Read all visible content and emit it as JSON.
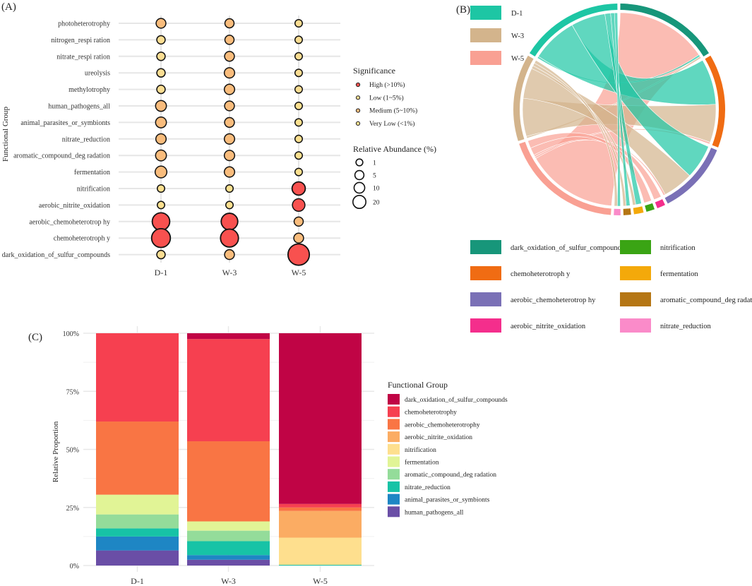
{
  "panels": {
    "a_label": "(A)",
    "b_label": "(B)",
    "c_label": "(C)"
  },
  "chart_data": [
    {
      "type": "scatter",
      "title": "(A)",
      "xlabel": "",
      "ylabel": "Functional Group",
      "groups": [
        "D-1",
        "W-3",
        "W-5"
      ],
      "categories": [
        "photoheterotrophy",
        "nitrogen_respi ration",
        "nitrate_respi ration",
        "ureolysis",
        "methylotrophy",
        "human_pathogens_all",
        "animal_parasites_or_symbionts",
        "nitrate_reduction",
        "aromatic_compound_deg radation",
        "fermentation",
        "nitrification",
        "aerobic_nitrite_oxidation",
        "aerobic_chemoheterotrop hy",
        "chemoheterotroph y",
        "dark_oxidation_of_sulfur_compounds"
      ],
      "abundance": [
        [
          2,
          1.5,
          0.5
        ],
        [
          1,
          1.5,
          0.5
        ],
        [
          1,
          2,
          0.5
        ],
        [
          1,
          2.5,
          0.5
        ],
        [
          1,
          2.5,
          0.5
        ],
        [
          3,
          2,
          0.5
        ],
        [
          3,
          2,
          0.5
        ],
        [
          2.5,
          2.5,
          0.5
        ],
        [
          3,
          2.5,
          0.5
        ],
        [
          4,
          2.5,
          0.5
        ],
        [
          0.5,
          0.5,
          6
        ],
        [
          0.5,
          0.5,
          5
        ],
        [
          14,
          12,
          1.5
        ],
        [
          17,
          15,
          2
        ],
        [
          1,
          2,
          24
        ]
      ],
      "significance": [
        [
          "Medium",
          "Medium",
          "Low"
        ],
        [
          "Low",
          "Medium",
          "Low"
        ],
        [
          "Low",
          "Medium",
          "Low"
        ],
        [
          "Low",
          "Medium",
          "Low"
        ],
        [
          "Low",
          "Medium",
          "Low"
        ],
        [
          "Medium",
          "Medium",
          "Very Low"
        ],
        [
          "Medium",
          "Medium",
          "Very Low"
        ],
        [
          "Medium",
          "Medium",
          "Very Low"
        ],
        [
          "Medium",
          "Medium",
          "Very Low"
        ],
        [
          "Medium",
          "Medium",
          "Very Low"
        ],
        [
          "Very Low",
          "Very Low",
          "High"
        ],
        [
          "Very Low",
          "Very Low",
          "High"
        ],
        [
          "High",
          "High",
          "Medium"
        ],
        [
          "High",
          "High",
          "Medium"
        ],
        [
          "Low",
          "Medium",
          "High"
        ]
      ],
      "significance_legend": {
        "title": "Significance",
        "items": [
          "High (>10%)",
          "Low (1~5%)",
          "Medium (5~10%)",
          "Very Low (<1%)"
        ]
      },
      "size_legend": {
        "title": "Relative Abundance (%)",
        "values": [
          1,
          5,
          10,
          20
        ]
      },
      "colors": {
        "High": "#f8514f",
        "Medium": "#f9bc7c",
        "Low": "#fbdd92",
        "Very Low": "#fce08f"
      }
    },
    {
      "type": "chord",
      "title": "(B)",
      "sources": [
        {
          "name": "D-1",
          "color": "#1dc6a4"
        },
        {
          "name": "W-3",
          "color": "#d3b48c"
        },
        {
          "name": "W-5",
          "color": "#f9a093"
        }
      ],
      "targets": [
        {
          "name": "dark_oxidation_of_sulfur_compounds",
          "color": "#17967a"
        },
        {
          "name": "chemoheterotroph y",
          "color": "#f06c13"
        },
        {
          "name": "aerobic_chemoheterotrop hy",
          "color": "#7a70b6"
        },
        {
          "name": "aerobic_nitrite_oxidation",
          "color": "#f42e8c"
        },
        {
          "name": "nitrification",
          "color": "#3aa414"
        },
        {
          "name": "fermentation",
          "color": "#f4a90a"
        },
        {
          "name": "aromatic_compound_deg radation",
          "color": "#b57614"
        },
        {
          "name": "nitrate_reduction",
          "color": "#fa8bc9"
        }
      ],
      "legend_order": [
        "dark_oxidation_of_sulfur_compounds",
        "nitrification",
        "chemoheterotroph y",
        "fermentation",
        "aerobic_chemoheterotrop hy",
        "aromatic_compound_deg radation",
        "aerobic_nitrite_oxidation",
        "nitrate_reduction"
      ],
      "flows": [
        {
          "source": "W-5",
          "target": "dark_oxidation_of_sulfur_compounds",
          "value": 24
        },
        {
          "source": "D-1",
          "target": "dark_oxidation_of_sulfur_compounds",
          "value": 0.5
        },
        {
          "source": "W-3",
          "target": "dark_oxidation_of_sulfur_compounds",
          "value": 0.5
        },
        {
          "source": "D-1",
          "target": "chemoheterotroph y",
          "value": 12
        },
        {
          "source": "W-3",
          "target": "chemoheterotroph y",
          "value": 10
        },
        {
          "source": "W-5",
          "target": "chemoheterotroph y",
          "value": 0.5
        },
        {
          "source": "D-1",
          "target": "aerobic_chemoheterotrop hy",
          "value": 9
        },
        {
          "source": "W-3",
          "target": "aerobic_chemoheterotrop hy",
          "value": 8
        },
        {
          "source": "W-5",
          "target": "aerobic_chemoheterotrop hy",
          "value": 0.5
        },
        {
          "source": "W-5",
          "target": "aerobic_nitrite_oxidation",
          "value": 2
        },
        {
          "source": "W-5",
          "target": "nitrification",
          "value": 2
        },
        {
          "source": "D-1",
          "target": "fermentation",
          "value": 1.5
        },
        {
          "source": "W-3",
          "target": "fermentation",
          "value": 0.8
        },
        {
          "source": "D-1",
          "target": "aromatic_compound_deg radation",
          "value": 1
        },
        {
          "source": "W-3",
          "target": "aromatic_compound_deg radation",
          "value": 0.8
        },
        {
          "source": "D-1",
          "target": "nitrate_reduction",
          "value": 0.8
        },
        {
          "source": "W-3",
          "target": "nitrate_reduction",
          "value": 0.8
        }
      ]
    },
    {
      "type": "bar",
      "stacked": true,
      "title": "(C)",
      "xlabel": "",
      "ylabel": "Relative Proportion",
      "categories": [
        "D-1",
        "W-3",
        "W-5"
      ],
      "ylim": [
        0,
        1
      ],
      "yticks": [
        "0%",
        "25%",
        "50%",
        "75%",
        "100%"
      ],
      "legend_title": "Functional Group",
      "series": [
        {
          "name": "human_pathogens_all",
          "color": "#6a4ea6",
          "values": [
            0.065,
            0.025,
            0
          ]
        },
        {
          "name": "animal_parasites_or_symbionts",
          "color": "#1e86c4",
          "values": [
            0.06,
            0.02,
            0
          ]
        },
        {
          "name": "nitrate_reduction",
          "color": "#17c3a6",
          "values": [
            0.035,
            0.06,
            0.003
          ]
        },
        {
          "name": "aromatic_compound_deg radation",
          "color": "#94dc9a",
          "values": [
            0.06,
            0.045,
            0
          ]
        },
        {
          "name": "fermentation",
          "color": "#e1f496",
          "values": [
            0.085,
            0.04,
            0
          ]
        },
        {
          "name": "nitrification",
          "color": "#fedf8e",
          "values": [
            0,
            0,
            0.117
          ]
        },
        {
          "name": "aerobic_nitrite_oxidation",
          "color": "#fbac63",
          "values": [
            0,
            0,
            0.115
          ]
        },
        {
          "name": "aerobic_chemoheterotrop hy",
          "color": "#f97544",
          "values": [
            0.315,
            0.345,
            0.015
          ]
        },
        {
          "name": "chemoheterotrophy",
          "color": "#f64050",
          "values": [
            0.38,
            0.44,
            0.015
          ]
        },
        {
          "name": "dark_oxidation_of_sulfur_compounds",
          "color": "#c00445",
          "values": [
            0,
            0.025,
            0.735
          ]
        }
      ],
      "legend_order": [
        "dark_oxidation_of_sulfur_compounds",
        "chemoheterotrophy",
        "aerobic_chemoheterotrophy",
        "aerobic_nitrite_oxidation",
        "nitrification",
        "fermentation",
        "aromatic_compound_deg radation",
        "nitrate_reduction",
        "animal_parasites_or_symbionts",
        "human_pathogens_all"
      ]
    }
  ]
}
